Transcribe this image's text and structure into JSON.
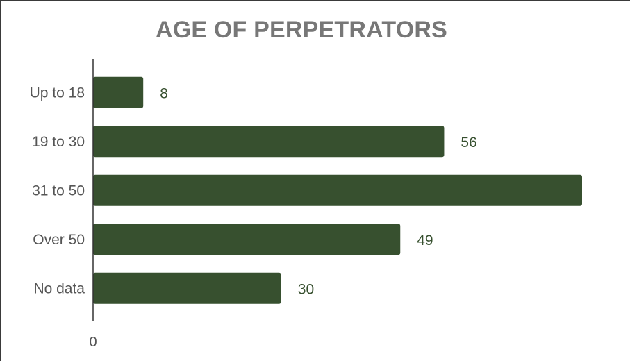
{
  "chart_data": {
    "type": "bar",
    "orientation": "horizontal",
    "title": "AGE OF PERPETRATORS",
    "categories": [
      "Up to 18",
      "19 to 30",
      "31 to 50",
      "Over 50",
      "No data"
    ],
    "values": [
      8,
      56,
      78,
      49,
      30
    ],
    "value_labels": [
      "8",
      "56",
      "",
      "49",
      "30"
    ],
    "xlim": [
      0,
      78
    ],
    "x_tick_labels": [
      "0"
    ],
    "grid": false,
    "legend": "none",
    "bar_color": "#37502f"
  }
}
